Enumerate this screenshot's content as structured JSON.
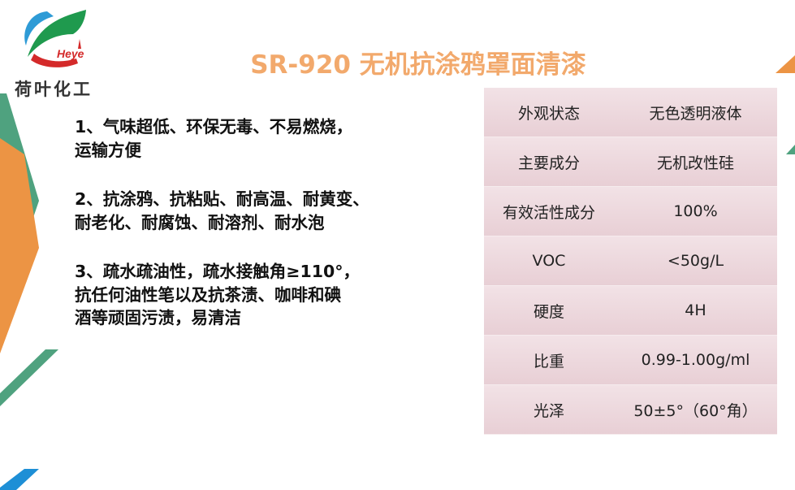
{
  "logo": {
    "brand_latin": "Heye",
    "brand_name": "荷叶化工"
  },
  "title": "SR-920 无机抗涂鸦罩面清漆",
  "features": [
    "1、气味超低、环保无毒、不易燃烧，\n运输方便",
    "2、抗涂鸦、抗粘贴、耐高温、耐黄变、\n耐老化、耐腐蚀、耐溶剂、耐水泡",
    "3、疏水疏油性，疏水接触角≥110°，\n 抗任何油性笔以及抗茶渍、咖啡和碘\n酒等顽固污渍，易清洁"
  ],
  "specs": [
    {
      "label": "外观状态",
      "value": "无色透明液体"
    },
    {
      "label": "主要成分",
      "value": "无机改性硅"
    },
    {
      "label": "有效活性成分",
      "value": "100%"
    },
    {
      "label": "VOC",
      "value": "<50g/L"
    },
    {
      "label": "硬度",
      "value": "4H"
    },
    {
      "label": "比重",
      "value": "0.99-1.00g/ml"
    },
    {
      "label": "光泽",
      "value": "50±5°（60°角）"
    }
  ],
  "colors": {
    "title": "#f2a96c",
    "green": "#4fa27f",
    "orange": "#ec9444",
    "blue": "#1e8fd6",
    "table_bg": "#ecd6db"
  }
}
